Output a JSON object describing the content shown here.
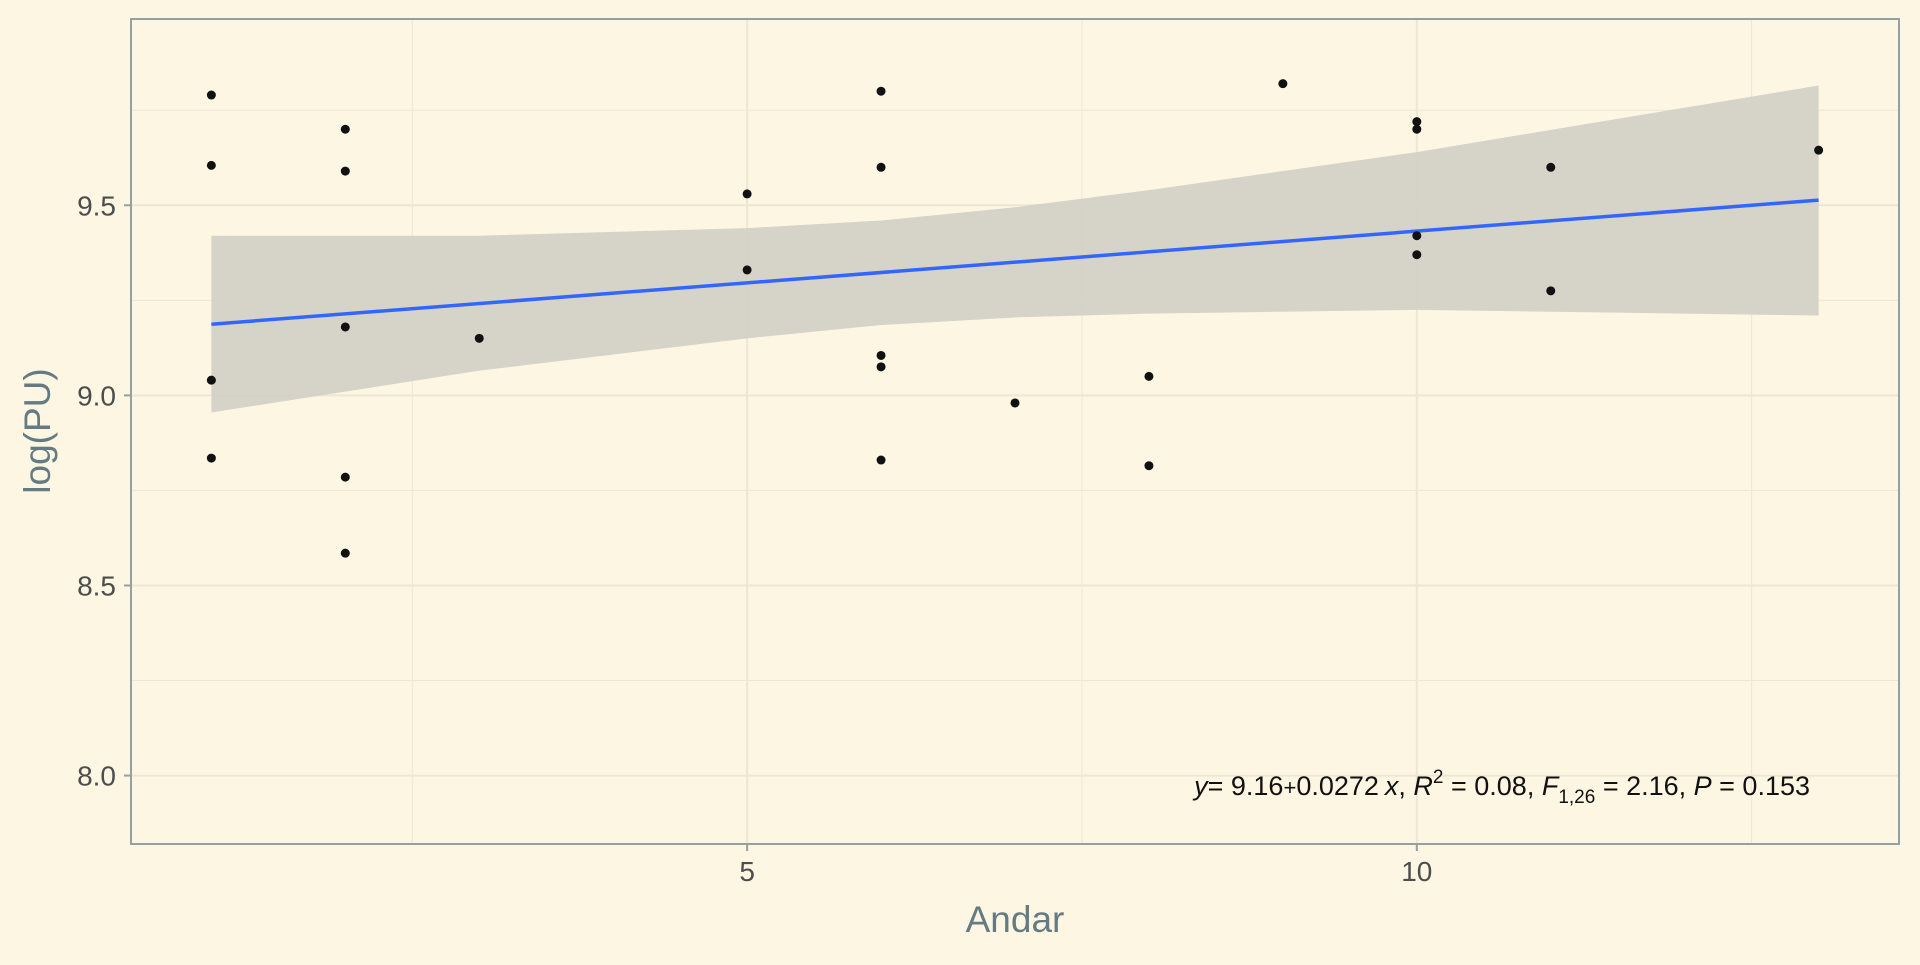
{
  "chart_data": {
    "type": "scatter",
    "title": "",
    "xlabel": "Andar",
    "ylabel": "log(PU)",
    "xlim": [
      0.4,
      13.6
    ],
    "ylim": [
      7.82,
      9.99
    ],
    "x_ticks": [
      5,
      10
    ],
    "x_tick_labels": [
      "5",
      "10"
    ],
    "y_ticks": [
      8.0,
      8.5,
      9.0,
      9.5
    ],
    "y_tick_labels": [
      "8.0",
      "8.5",
      "9.0",
      "9.5"
    ],
    "grid": true,
    "legend": "none",
    "points": [
      {
        "x": 1,
        "y": 9.79
      },
      {
        "x": 1,
        "y": 9.605
      },
      {
        "x": 1,
        "y": 9.04
      },
      {
        "x": 1,
        "y": 8.835
      },
      {
        "x": 2,
        "y": 9.7
      },
      {
        "x": 2,
        "y": 9.59
      },
      {
        "x": 2,
        "y": 9.18
      },
      {
        "x": 2,
        "y": 8.785
      },
      {
        "x": 2,
        "y": 8.585
      },
      {
        "x": 3,
        "y": 9.15
      },
      {
        "x": 5,
        "y": 9.53
      },
      {
        "x": 5,
        "y": 9.33
      },
      {
        "x": 6,
        "y": 9.8
      },
      {
        "x": 6,
        "y": 9.6
      },
      {
        "x": 6,
        "y": 9.105
      },
      {
        "x": 6,
        "y": 9.075
      },
      {
        "x": 6,
        "y": 8.83
      },
      {
        "x": 7,
        "y": 8.98
      },
      {
        "x": 8,
        "y": 9.05
      },
      {
        "x": 8,
        "y": 8.815
      },
      {
        "x": 9,
        "y": 9.82
      },
      {
        "x": 10,
        "y": 9.72
      },
      {
        "x": 10,
        "y": 9.7
      },
      {
        "x": 10,
        "y": 9.42
      },
      {
        "x": 10,
        "y": 9.37
      },
      {
        "x": 11,
        "y": 9.6
      },
      {
        "x": 11,
        "y": 9.275
      },
      {
        "x": 13,
        "y": 9.645
      }
    ],
    "fit_line": {
      "intercept": 9.16,
      "slope": 0.0272,
      "x_range": [
        1,
        13
      ],
      "color": "#3366ff"
    },
    "confidence_band": [
      {
        "x": 1,
        "lower": 8.955,
        "upper": 9.42
      },
      {
        "x": 3,
        "lower": 9.065,
        "upper": 9.42
      },
      {
        "x": 5,
        "lower": 9.15,
        "upper": 9.44
      },
      {
        "x": 6,
        "lower": 9.185,
        "upper": 9.46
      },
      {
        "x": 7,
        "lower": 9.205,
        "upper": 9.495
      },
      {
        "x": 8,
        "lower": 9.215,
        "upper": 9.54
      },
      {
        "x": 10,
        "lower": 9.225,
        "upper": 9.64
      },
      {
        "x": 13,
        "lower": 9.21,
        "upper": 9.815
      }
    ],
    "annotation": {
      "y": "y",
      "eq1": "= 9.16",
      "plus": "+",
      "eq2": "0.0272",
      "x": "x",
      "r_sep": ", ",
      "R": "R",
      "r_sup": "2",
      "r_val": " = 0.08, ",
      "F": "F",
      "f_sub": "1,26",
      "f_val": " = 2.16, ",
      "P": "P",
      "p_val": " = 0.153"
    },
    "colors": {
      "background": "#fdf6e3",
      "grid": "#ede6d3",
      "axis_text": "#586e75",
      "points": "#111111",
      "band": "#d2cfc4",
      "line": "#3366ff"
    }
  }
}
